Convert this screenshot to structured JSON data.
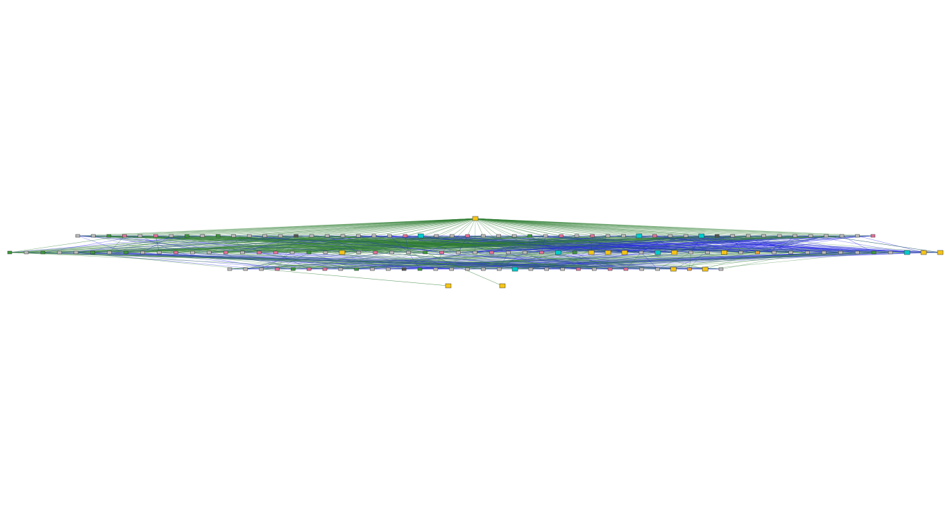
{
  "diagram": {
    "type": "layered-network-graph",
    "colors": {
      "background": "#ffffff",
      "edge_green": "#2e7d32",
      "edge_blue": "#2323e6",
      "node_gray": "#bdbdbd",
      "node_pink": "#e57399",
      "node_green": "#3c9a3c",
      "node_cyan": "#00cccc",
      "node_yellow": "#f5c518",
      "node_orange": "#f2a33a",
      "node_dark": "#555555",
      "node_border": "#333333"
    },
    "legend": "none",
    "layers": [
      {
        "name": "root",
        "nodes": [
          {
            "color": "yellow"
          }
        ]
      },
      {
        "name": "layer-1",
        "nodes": [
          {
            "color": "gray"
          },
          {
            "color": "gray"
          },
          {
            "color": "green"
          },
          {
            "color": "pink"
          },
          {
            "color": "gray"
          },
          {
            "color": "pink"
          },
          {
            "color": "gray"
          },
          {
            "color": "green"
          },
          {
            "color": "gray"
          },
          {
            "color": "green"
          },
          {
            "color": "gray"
          },
          {
            "color": "gray"
          },
          {
            "color": "gray"
          },
          {
            "color": "gray"
          },
          {
            "color": "dark"
          },
          {
            "color": "gray"
          },
          {
            "color": "gray"
          },
          {
            "color": "gray"
          },
          {
            "color": "gray"
          },
          {
            "color": "gray"
          },
          {
            "color": "gray"
          },
          {
            "color": "pink"
          },
          {
            "color": "cyan"
          },
          {
            "color": "gray"
          },
          {
            "color": "gray"
          },
          {
            "color": "pink"
          },
          {
            "color": "gray"
          },
          {
            "color": "gray"
          },
          {
            "color": "gray"
          },
          {
            "color": "green"
          },
          {
            "color": "gray"
          },
          {
            "color": "pink"
          },
          {
            "color": "gray"
          },
          {
            "color": "pink"
          },
          {
            "color": "gray"
          },
          {
            "color": "gray"
          },
          {
            "color": "cyan"
          },
          {
            "color": "pink"
          },
          {
            "color": "gray"
          },
          {
            "color": "gray"
          },
          {
            "color": "cyan"
          },
          {
            "color": "dark"
          },
          {
            "color": "gray"
          },
          {
            "color": "gray"
          },
          {
            "color": "gray"
          },
          {
            "color": "gray"
          },
          {
            "color": "gray"
          },
          {
            "color": "gray"
          },
          {
            "color": "gray"
          },
          {
            "color": "gray"
          },
          {
            "color": "gray"
          },
          {
            "color": "pink"
          }
        ]
      },
      {
        "name": "layer-2",
        "nodes": [
          {
            "color": "green"
          },
          {
            "color": "gray"
          },
          {
            "color": "green"
          },
          {
            "color": "gray"
          },
          {
            "color": "gray"
          },
          {
            "color": "green"
          },
          {
            "color": "gray"
          },
          {
            "color": "green"
          },
          {
            "color": "gray"
          },
          {
            "color": "gray"
          },
          {
            "color": "pink"
          },
          {
            "color": "gray"
          },
          {
            "color": "gray"
          },
          {
            "color": "pink"
          },
          {
            "color": "gray"
          },
          {
            "color": "pink"
          },
          {
            "color": "pink"
          },
          {
            "color": "gray"
          },
          {
            "color": "green"
          },
          {
            "color": "gray"
          },
          {
            "color": "yellow"
          },
          {
            "color": "gray"
          },
          {
            "color": "pink"
          },
          {
            "color": "gray"
          },
          {
            "color": "gray"
          },
          {
            "color": "green"
          },
          {
            "color": "pink"
          },
          {
            "color": "gray"
          },
          {
            "color": "gray"
          },
          {
            "color": "pink"
          },
          {
            "color": "gray"
          },
          {
            "color": "gray"
          },
          {
            "color": "pink"
          },
          {
            "color": "cyan"
          },
          {
            "color": "green"
          },
          {
            "color": "yellow"
          },
          {
            "color": "yellow"
          },
          {
            "color": "yellow"
          },
          {
            "color": "gray"
          },
          {
            "color": "cyan"
          },
          {
            "color": "yellow"
          },
          {
            "color": "gray"
          },
          {
            "color": "gray"
          },
          {
            "color": "yellow"
          },
          {
            "color": "gray"
          },
          {
            "color": "orange"
          },
          {
            "color": "gray"
          },
          {
            "color": "gray"
          },
          {
            "color": "gray"
          },
          {
            "color": "gray"
          },
          {
            "color": "gray"
          },
          {
            "color": "gray"
          },
          {
            "color": "green"
          },
          {
            "color": "gray"
          },
          {
            "color": "cyan"
          },
          {
            "color": "yellow"
          },
          {
            "color": "yellow"
          }
        ]
      },
      {
        "name": "layer-3",
        "nodes": [
          {
            "color": "gray"
          },
          {
            "color": "gray"
          },
          {
            "color": "gray"
          },
          {
            "color": "pink"
          },
          {
            "color": "green"
          },
          {
            "color": "pink"
          },
          {
            "color": "pink"
          },
          {
            "color": "gray"
          },
          {
            "color": "green"
          },
          {
            "color": "gray"
          },
          {
            "color": "gray"
          },
          {
            "color": "dark"
          },
          {
            "color": "green"
          },
          {
            "color": "gray"
          },
          {
            "color": "gray"
          },
          {
            "color": "gray"
          },
          {
            "color": "gray"
          },
          {
            "color": "gray"
          },
          {
            "color": "cyan"
          },
          {
            "color": "gray"
          },
          {
            "color": "gray"
          },
          {
            "color": "gray"
          },
          {
            "color": "pink"
          },
          {
            "color": "gray"
          },
          {
            "color": "pink"
          },
          {
            "color": "pink"
          },
          {
            "color": "gray"
          },
          {
            "color": "gray"
          },
          {
            "color": "yellow"
          },
          {
            "color": "orange"
          },
          {
            "color": "yellow"
          },
          {
            "color": "gray"
          }
        ]
      },
      {
        "name": "layer-4",
        "nodes": [
          {
            "color": "yellow"
          },
          {
            "color": "yellow"
          }
        ]
      }
    ]
  }
}
